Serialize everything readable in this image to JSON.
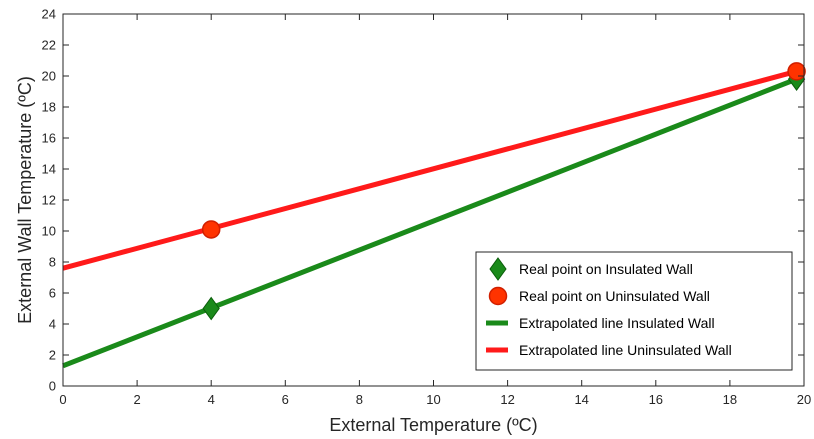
{
  "chart_data": {
    "type": "scatter",
    "title": "",
    "xlabel": "External Temperature (ºC)",
    "ylabel": "External Wall Temperature (ºC)",
    "xlim": [
      0,
      20
    ],
    "ylim": [
      0,
      24
    ],
    "xticks": [
      0,
      2,
      4,
      6,
      8,
      10,
      12,
      14,
      16,
      18,
      20
    ],
    "yticks": [
      0,
      2,
      4,
      6,
      8,
      10,
      12,
      14,
      16,
      18,
      20,
      22,
      24
    ],
    "grid": false,
    "legend_position": "bottom-right",
    "series": [
      {
        "name": "Real point on Insulated Wall",
        "kind": "points",
        "marker": "diamond",
        "color": "#1a8a1a",
        "x": [
          4,
          19.8
        ],
        "y": [
          5.0,
          19.8
        ]
      },
      {
        "name": "Real point on Uninsulated Wall",
        "kind": "points",
        "marker": "circle",
        "color": "#ff3300",
        "x": [
          4,
          19.8
        ],
        "y": [
          10.1,
          20.3
        ]
      },
      {
        "name": "Extrapolated line Insulated Wall",
        "kind": "line",
        "color": "#1a8a1a",
        "x": [
          0,
          19.8
        ],
        "y": [
          1.3,
          19.8
        ]
      },
      {
        "name": "Extrapolated line Uninsulated Wall",
        "kind": "line",
        "color": "#ff1a1a",
        "x": [
          0,
          19.8
        ],
        "y": [
          7.6,
          20.3
        ]
      }
    ]
  }
}
